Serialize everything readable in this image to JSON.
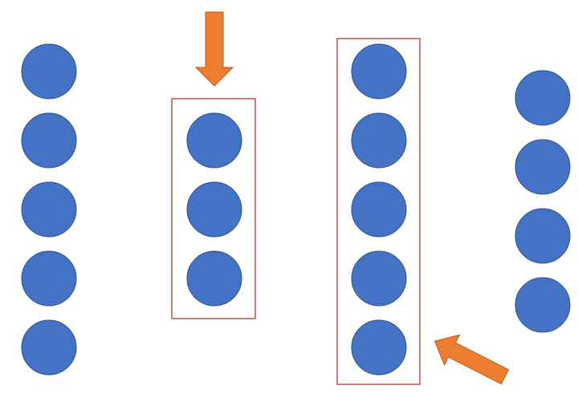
{
  "colors": {
    "background": "#ffffff",
    "circle_fill": "#4472c4",
    "circle_stroke": "#2f528f",
    "box_stroke": "#c0504d",
    "arrow_fill": "#ed7d31",
    "arrow_stroke": "#c55a11"
  },
  "groups": [
    {
      "id": "group-1",
      "circle_count": 5,
      "highlighted": false
    },
    {
      "id": "group-2",
      "circle_count": 3,
      "highlighted": true,
      "arrow_icon": "arrow-down-icon"
    },
    {
      "id": "group-3",
      "circle_count": 5,
      "highlighted": true,
      "arrow_icon": "arrow-up-left-icon"
    },
    {
      "id": "group-4",
      "circle_count": 4,
      "highlighted": false
    }
  ]
}
